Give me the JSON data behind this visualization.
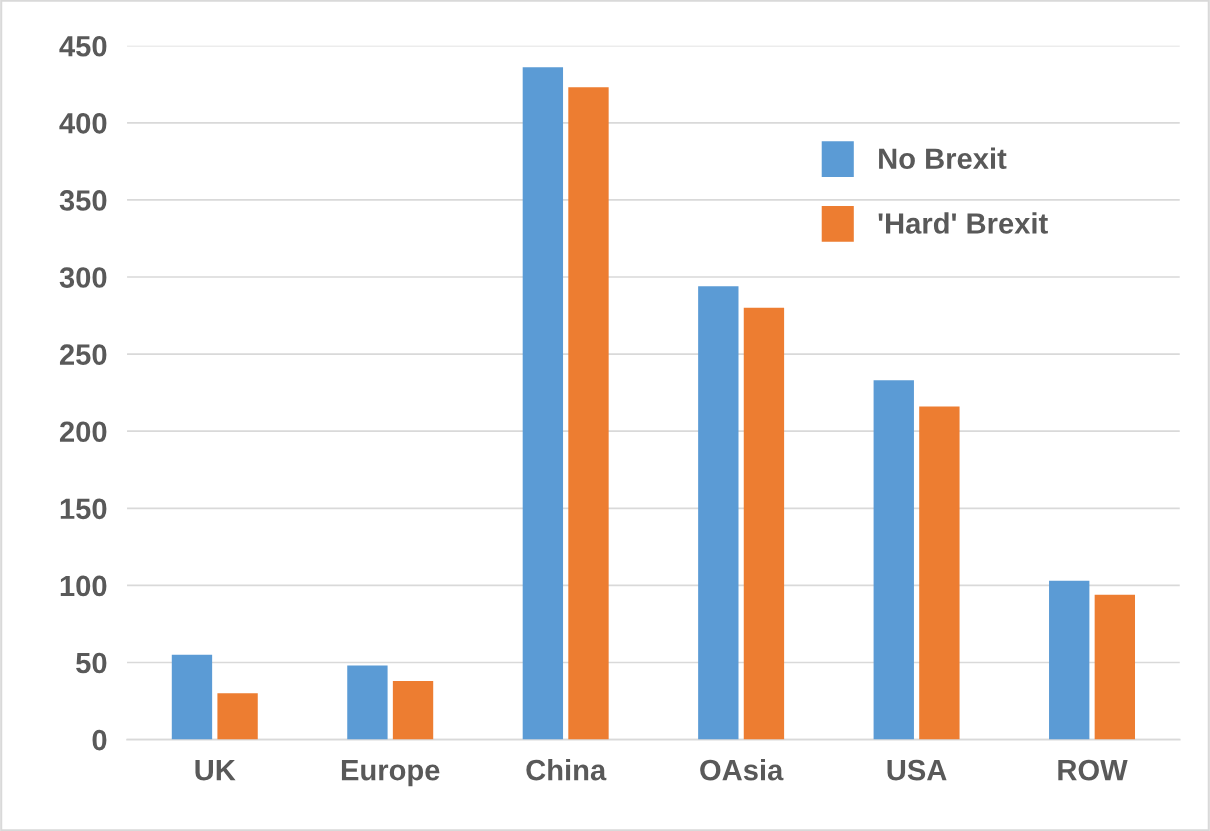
{
  "chart_data": {
    "type": "bar",
    "categories": [
      "UK",
      "Europe",
      "China",
      "OAsia",
      "USA",
      "ROW"
    ],
    "series": [
      {
        "name": "No Brexit",
        "color": "#5b9bd5",
        "values": [
          55,
          48,
          436,
          294,
          233,
          103
        ]
      },
      {
        "name": "'Hard' Brexit",
        "color": "#ed7d31",
        "values": [
          30,
          38,
          423,
          280,
          216,
          94
        ]
      }
    ],
    "ylim": [
      0,
      450
    ],
    "yticks": [
      0,
      50,
      100,
      150,
      200,
      250,
      300,
      350,
      400,
      450
    ],
    "grid": "y",
    "legend": "top right"
  }
}
